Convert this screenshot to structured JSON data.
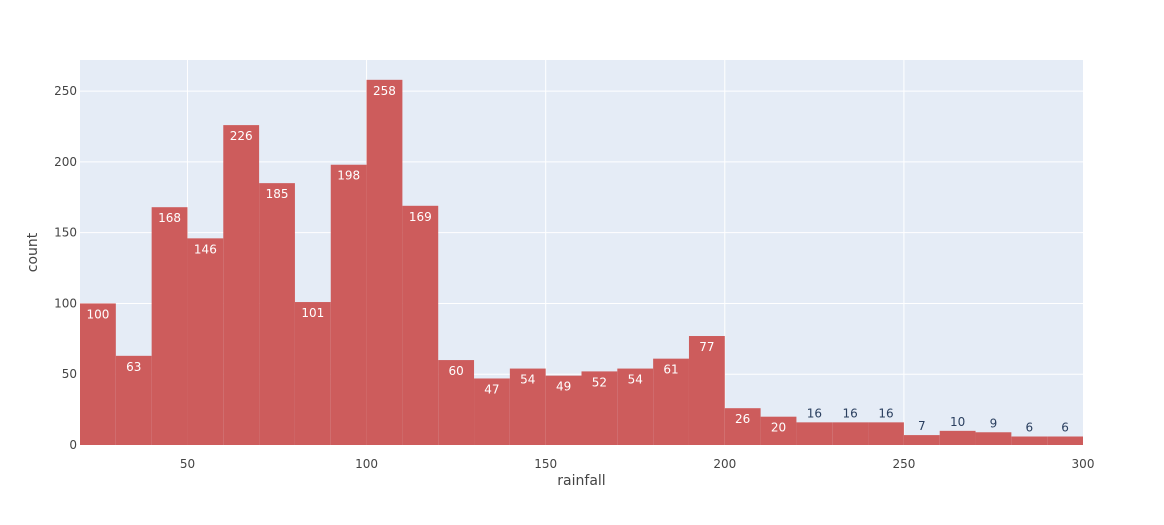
{
  "chart_data": {
    "type": "bar",
    "xlabel": "rainfall",
    "ylabel": "count",
    "xlim": [
      20,
      300
    ],
    "ylim": [
      0,
      272
    ],
    "bin_width": 10,
    "grid": true,
    "colors": {
      "bar": "#cd5c5c",
      "plot_bg": "#e5ecf6",
      "grid": "#ffffff",
      "inside_label": "#ffffff",
      "outside_label": "#2a3f5f"
    },
    "x_ticks": [
      50,
      100,
      150,
      200,
      250,
      300
    ],
    "y_ticks": [
      0,
      50,
      100,
      150,
      200,
      250
    ],
    "bins": [
      20,
      30,
      40,
      50,
      60,
      70,
      80,
      90,
      100,
      110,
      120,
      130,
      140,
      150,
      160,
      170,
      180,
      190,
      200,
      210,
      220,
      230,
      240,
      250,
      260,
      270,
      280,
      290
    ],
    "values": [
      100,
      63,
      168,
      146,
      226,
      185,
      101,
      198,
      258,
      169,
      60,
      47,
      54,
      49,
      52,
      54,
      61,
      77,
      26,
      20,
      16,
      16,
      16,
      7,
      10,
      9,
      6,
      6
    ]
  }
}
